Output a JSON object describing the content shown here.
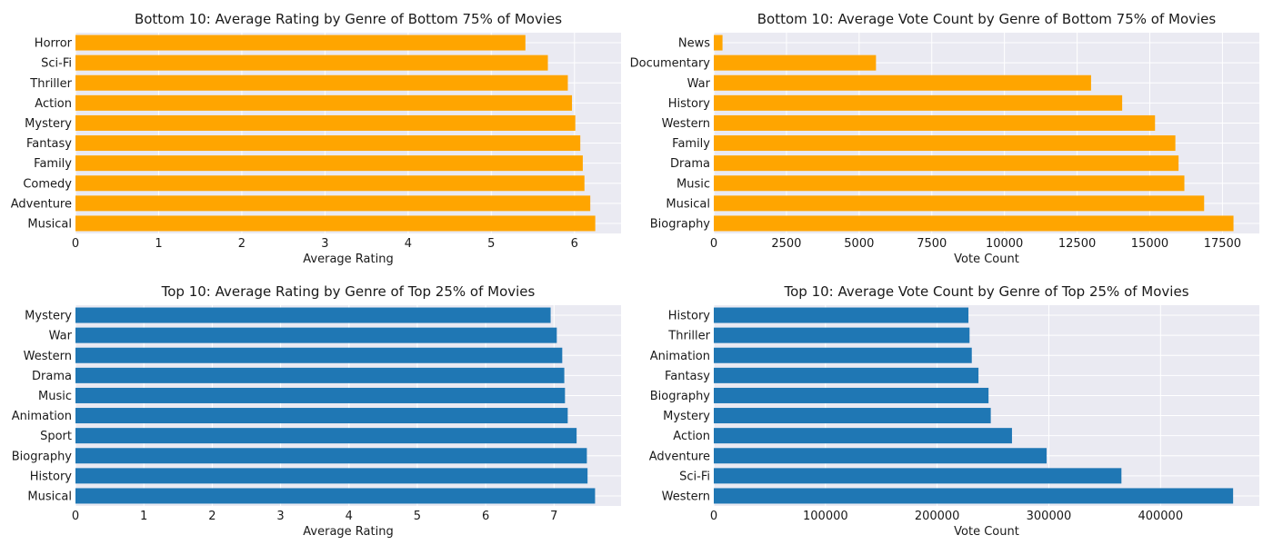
{
  "colors": {
    "bottom_bar": "#FFA500",
    "top_bar": "#1F77B4",
    "plot_bg": "#EAEAF2",
    "grid": "#FFFFFF"
  },
  "chart_data": [
    {
      "type": "bar",
      "orientation": "horizontal",
      "title": "Bottom 10: Average Rating by Genre of Bottom 75% of Movies",
      "xlabel": "Average Rating",
      "ylabel": "",
      "color": "#FFA500",
      "categories": [
        "Horror",
        "Sci-Fi",
        "Thriller",
        "Action",
        "Mystery",
        "Fantasy",
        "Family",
        "Comedy",
        "Adventure",
        "Musical"
      ],
      "values": [
        5.41,
        5.68,
        5.92,
        5.97,
        6.01,
        6.07,
        6.1,
        6.12,
        6.19,
        6.25
      ],
      "xlim": [
        0,
        6.56
      ],
      "xticks": [
        0,
        1,
        2,
        3,
        4,
        5,
        6
      ],
      "xtick_labels": [
        "0",
        "1",
        "2",
        "3",
        "4",
        "5",
        "6"
      ],
      "grid": true,
      "legend": "none"
    },
    {
      "type": "bar",
      "orientation": "horizontal",
      "title": "Bottom 10: Average Vote Count by Genre of Bottom 75% of Movies",
      "xlabel": "Vote Count",
      "ylabel": "",
      "color": "#FFA500",
      "categories": [
        "News",
        "Documentary",
        "War",
        "History",
        "Western",
        "Family",
        "Drama",
        "Music",
        "Musical",
        "Biography"
      ],
      "values": [
        300,
        5580,
        12980,
        14050,
        15180,
        15880,
        15990,
        16190,
        16870,
        17880
      ],
      "xlim": [
        0,
        18770
      ],
      "xticks": [
        0,
        2500,
        5000,
        7500,
        10000,
        12500,
        15000,
        17500
      ],
      "xtick_labels": [
        "0",
        "2500",
        "5000",
        "7500",
        "10000",
        "12500",
        "15000",
        "17500"
      ],
      "grid": true,
      "legend": "none"
    },
    {
      "type": "bar",
      "orientation": "horizontal",
      "title": "Top 10: Average Rating by Genre of Top 25% of Movies",
      "xlabel": "Average Rating",
      "ylabel": "",
      "color": "#1F77B4",
      "categories": [
        "Mystery",
        "War",
        "Western",
        "Drama",
        "Music",
        "Animation",
        "Sport",
        "Biography",
        "History",
        "Musical"
      ],
      "values": [
        6.95,
        7.04,
        7.12,
        7.15,
        7.16,
        7.2,
        7.33,
        7.48,
        7.49,
        7.6
      ],
      "xlim": [
        0,
        7.98
      ],
      "xticks": [
        0,
        1,
        2,
        3,
        4,
        5,
        6,
        7
      ],
      "xtick_labels": [
        "0",
        "1",
        "2",
        "3",
        "4",
        "5",
        "6",
        "7"
      ],
      "grid": true,
      "legend": "none"
    },
    {
      "type": "bar",
      "orientation": "horizontal",
      "title": "Top 10: Average Vote Count by Genre of Top 25% of Movies",
      "xlabel": "Vote Count",
      "ylabel": "",
      "color": "#1F77B4",
      "categories": [
        "History",
        "Thriller",
        "Animation",
        "Fantasy",
        "Biography",
        "Mystery",
        "Action",
        "Adventure",
        "Sci-Fi",
        "Western"
      ],
      "values": [
        228000,
        229000,
        231000,
        237000,
        246000,
        248000,
        267000,
        298000,
        365000,
        465000
      ],
      "xlim": [
        0,
        488500
      ],
      "xticks": [
        0,
        100000,
        200000,
        300000,
        400000
      ],
      "xtick_labels": [
        "0",
        "100000",
        "200000",
        "300000",
        "400000"
      ],
      "grid": true,
      "legend": "none"
    }
  ]
}
